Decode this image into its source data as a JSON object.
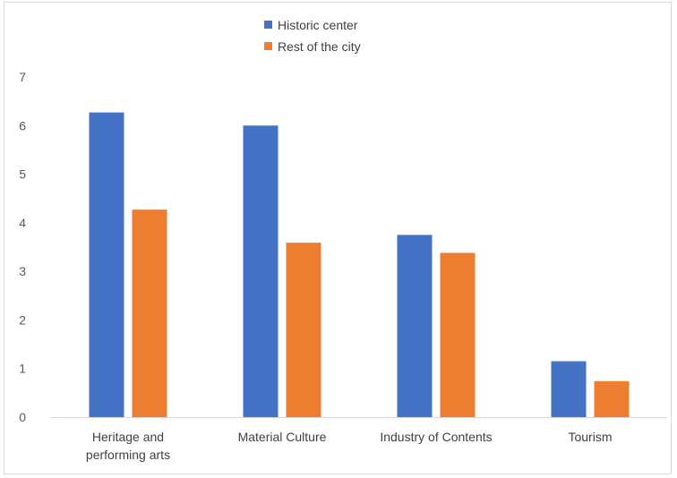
{
  "chart_data": {
    "type": "bar",
    "categories": [
      "Heritage and performing arts",
      "Material Culture",
      "Industry of Contents",
      "Tourism"
    ],
    "category_label_lines": [
      [
        "Heritage and",
        "performing arts"
      ],
      [
        "Material Culture"
      ],
      [
        "Industry of Contents"
      ],
      [
        "Tourism"
      ]
    ],
    "series": [
      {
        "name": "Historic center",
        "values": [
          6.27,
          6.0,
          3.75,
          1.15
        ],
        "color": "#4472C4"
      },
      {
        "name": "Rest of the city",
        "values": [
          4.27,
          3.59,
          3.38,
          0.74
        ],
        "color": "#ED7D31"
      }
    ],
    "ylim": [
      0,
      7
    ],
    "yticks": [
      0,
      1,
      2,
      3,
      4,
      5,
      6,
      7
    ],
    "grid": false,
    "legend": "top-center",
    "title": "",
    "xlabel": "",
    "ylabel": ""
  }
}
